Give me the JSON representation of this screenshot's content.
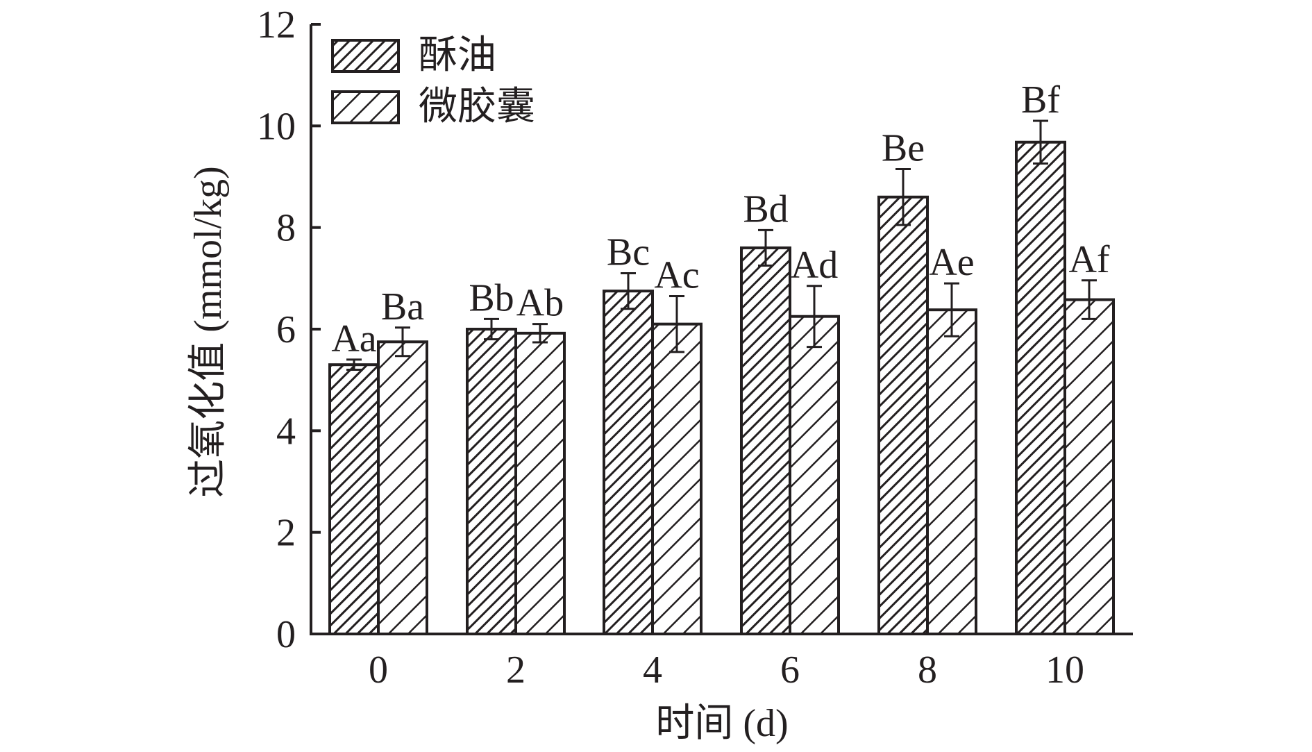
{
  "chart_data": {
    "type": "bar",
    "xlabel": "时间 (d)",
    "ylabel": "过氧化值 (mmol/kg)",
    "categories": [
      "0",
      "2",
      "4",
      "6",
      "8",
      "10"
    ],
    "ylim": [
      0,
      12
    ],
    "yticks": [
      "0",
      "2",
      "4",
      "6",
      "8",
      "10",
      "12"
    ],
    "legend_position": "top-left",
    "series": [
      {
        "name": "酥油",
        "pattern": "dense-diagonal-hatch",
        "values": [
          5.3,
          6.0,
          6.75,
          7.6,
          8.6,
          9.68
        ],
        "errors": [
          0.1,
          0.2,
          0.35,
          0.35,
          0.55,
          0.42
        ],
        "labels": [
          "Aa",
          "Bb",
          "Bc",
          "Bd",
          "Be",
          "Bf"
        ]
      },
      {
        "name": "微胶囊",
        "pattern": "sparse-diagonal-hatch",
        "values": [
          5.75,
          5.92,
          6.1,
          6.25,
          6.38,
          6.58
        ],
        "errors": [
          0.28,
          0.18,
          0.55,
          0.6,
          0.52,
          0.38
        ],
        "labels": [
          "Ba",
          "Ab",
          "Ac",
          "Ad",
          "Ae",
          "Af"
        ]
      }
    ],
    "colors": {
      "ink": "#231f20",
      "background": "#ffffff"
    }
  }
}
